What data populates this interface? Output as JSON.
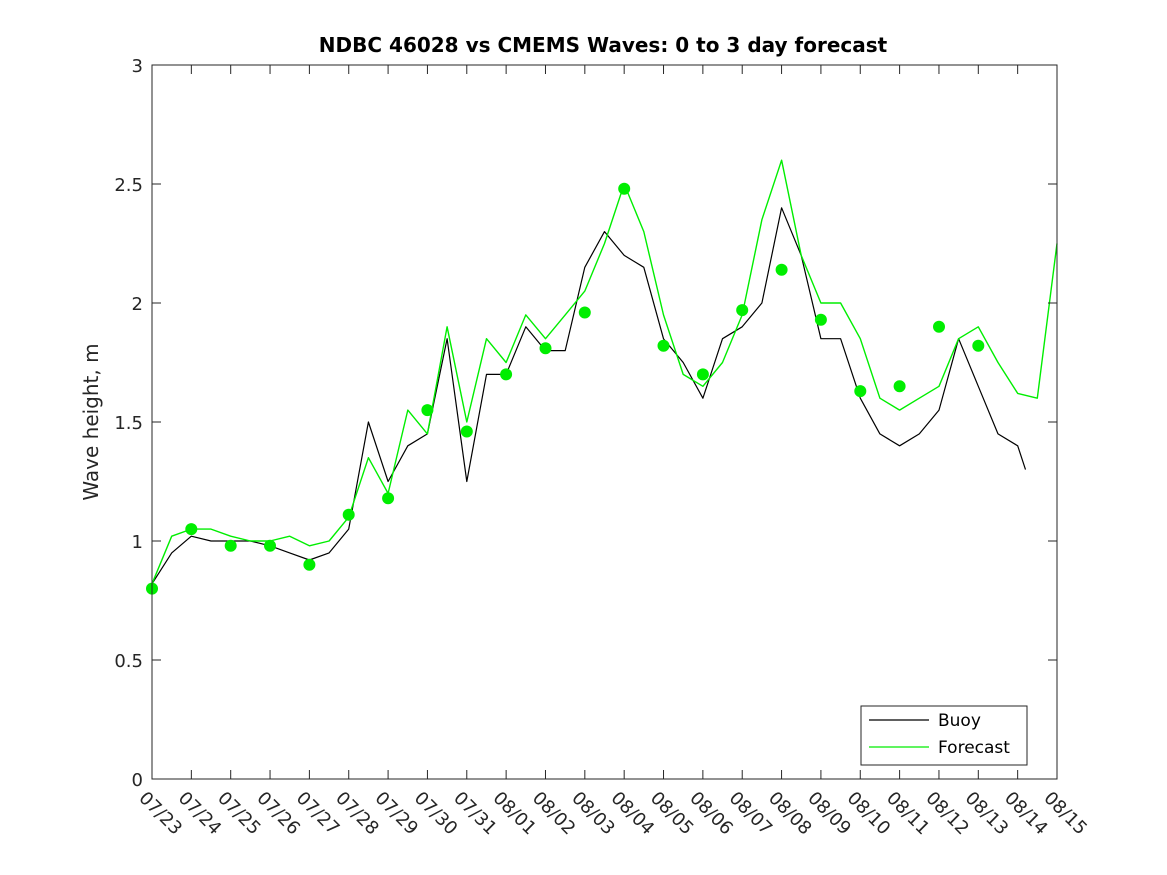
{
  "chart_data": {
    "type": "line",
    "title": "NDBC 46028 vs CMEMS Waves: 0 to 3 day forecast",
    "xlabel": "",
    "ylabel": "Wave height, m",
    "ylim": [
      0,
      3
    ],
    "yticks": [
      0,
      0.5,
      1,
      1.5,
      2,
      2.5,
      3
    ],
    "ytick_labels": [
      "0",
      "0.5",
      "1",
      "1.5",
      "2",
      "2.5",
      "3"
    ],
    "xlim": [
      "07/23",
      "08/15"
    ],
    "xtick_labels": [
      "07/23",
      "07/24",
      "07/25",
      "07/26",
      "07/27",
      "07/28",
      "07/29",
      "07/30",
      "07/31",
      "08/01",
      "08/02",
      "08/03",
      "08/04",
      "08/05",
      "08/06",
      "08/07",
      "08/08",
      "08/09",
      "08/10",
      "08/11",
      "08/12",
      "08/13",
      "08/14",
      "08/15"
    ],
    "grid": false,
    "legend": {
      "location": "bottom-right",
      "entries": [
        "Buoy",
        "Forecast"
      ]
    },
    "colors": {
      "buoy": "#000000",
      "forecast": "#00ee00",
      "axes": "#262626"
    },
    "series": [
      {
        "name": "Buoy",
        "style": "line",
        "x_day_index": [
          0.0,
          0.5,
          1.0,
          1.5,
          2.0,
          2.5,
          3.0,
          3.5,
          4.0,
          4.5,
          5.0,
          5.5,
          6.0,
          6.5,
          7.0,
          7.5,
          8.0,
          8.5,
          9.0,
          9.5,
          10.0,
          10.5,
          11.0,
          11.5,
          12.0,
          12.5,
          13.0,
          13.5,
          14.0,
          14.5,
          15.0,
          15.5,
          16.0,
          16.5,
          17.0,
          17.5,
          18.0,
          18.5,
          19.0,
          19.5,
          20.0,
          20.5,
          21.0,
          21.5,
          22.0,
          22.2
        ],
        "y": [
          0.82,
          0.95,
          1.02,
          1.0,
          1.0,
          1.0,
          0.98,
          0.95,
          0.92,
          0.95,
          1.05,
          1.5,
          1.25,
          1.4,
          1.45,
          1.85,
          1.25,
          1.7,
          1.7,
          1.9,
          1.8,
          1.8,
          2.15,
          2.3,
          2.2,
          2.15,
          1.85,
          1.75,
          1.6,
          1.85,
          1.9,
          2.0,
          2.4,
          2.2,
          1.85,
          1.85,
          1.6,
          1.45,
          1.4,
          1.45,
          1.55,
          1.85,
          1.65,
          1.45,
          1.4,
          1.3
        ]
      },
      {
        "name": "Forecast",
        "style": "line",
        "x_day_index": [
          0.0,
          0.5,
          1.0,
          1.5,
          2.0,
          2.5,
          3.0,
          3.5,
          4.0,
          4.5,
          5.0,
          5.5,
          6.0,
          6.5,
          7.0,
          7.5,
          8.0,
          8.5,
          9.0,
          9.5,
          10.0,
          10.5,
          11.0,
          11.5,
          12.0,
          12.5,
          13.0,
          13.5,
          14.0,
          14.5,
          15.0,
          15.5,
          16.0,
          16.5,
          17.0,
          17.5,
          18.0,
          18.5,
          19.0,
          19.5,
          20.0,
          20.5,
          21.0,
          21.5,
          22.0,
          22.5,
          23.0
        ],
        "y": [
          0.82,
          1.02,
          1.05,
          1.05,
          1.02,
          1.0,
          1.0,
          1.02,
          0.98,
          1.0,
          1.1,
          1.35,
          1.2,
          1.55,
          1.45,
          1.9,
          1.5,
          1.85,
          1.75,
          1.95,
          1.85,
          1.95,
          2.05,
          2.25,
          2.5,
          2.3,
          1.95,
          1.7,
          1.65,
          1.75,
          1.95,
          2.35,
          2.6,
          2.2,
          2.0,
          2.0,
          1.85,
          1.6,
          1.55,
          1.6,
          1.65,
          1.85,
          1.9,
          1.75,
          1.62,
          1.6,
          2.25
        ]
      },
      {
        "name": "Forecast",
        "style": "markers",
        "x_day_index": [
          0,
          1,
          2,
          3,
          4,
          5,
          6,
          7,
          8,
          9,
          10,
          11,
          12,
          13,
          14,
          15,
          16,
          17,
          18,
          19,
          20,
          21
        ],
        "y": [
          0.8,
          1.05,
          0.98,
          0.98,
          0.9,
          1.11,
          1.18,
          1.55,
          1.46,
          1.7,
          1.81,
          1.96,
          2.48,
          1.82,
          1.7,
          1.97,
          2.14,
          1.93,
          1.63,
          1.65,
          1.9,
          1.82
        ]
      }
    ]
  }
}
